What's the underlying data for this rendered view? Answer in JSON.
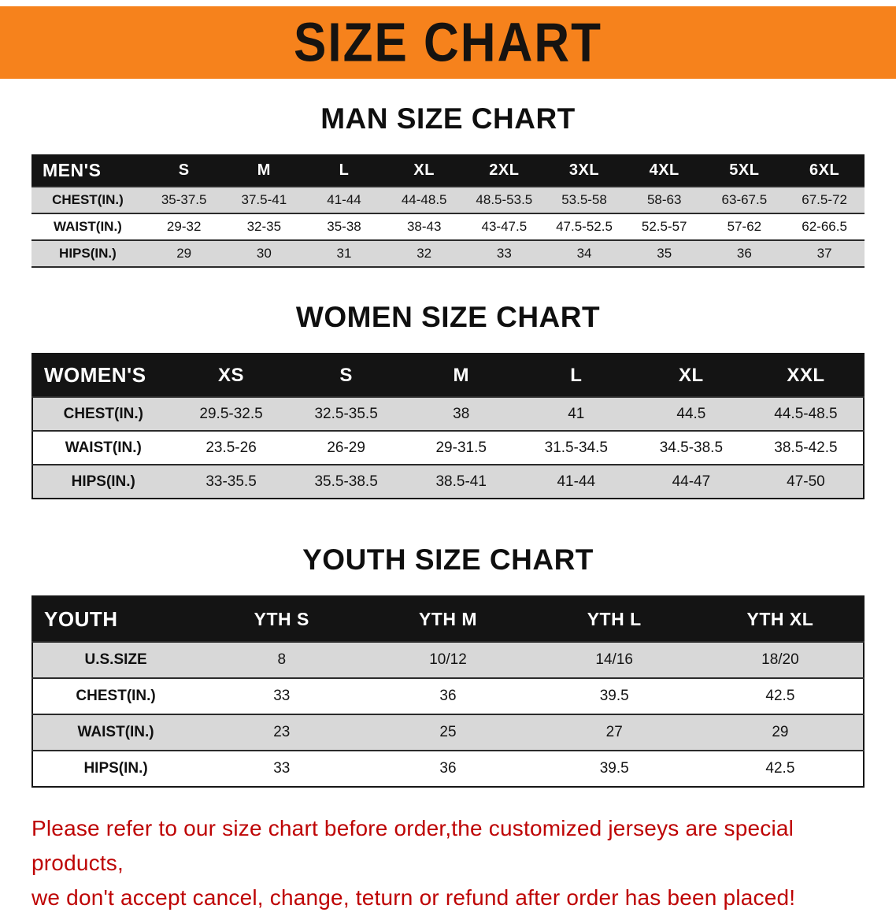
{
  "banner": {
    "title": "SIZE CHART",
    "bg_color": "#F6821C"
  },
  "sections": [
    {
      "title": "MAN SIZE CHART",
      "table": {
        "header": [
          "MEN'S",
          "S",
          "M",
          "L",
          "XL",
          "2XL",
          "3XL",
          "4XL",
          "5XL",
          "6XL"
        ],
        "rows": [
          [
            "CHEST(IN.)",
            "35-37.5",
            "37.5-41",
            "41-44",
            "44-48.5",
            "48.5-53.5",
            "53.5-58",
            "58-63",
            "63-67.5",
            "67.5-72"
          ],
          [
            "WAIST(IN.)",
            "29-32",
            "32-35",
            "35-38",
            "38-43",
            "43-47.5",
            "47.5-52.5",
            "52.5-57",
            "57-62",
            "62-66.5"
          ],
          [
            "HIPS(IN.)",
            "29",
            "30",
            "31",
            "32",
            "33",
            "34",
            "35",
            "36",
            "37"
          ]
        ]
      }
    },
    {
      "title": "WOMEN SIZE CHART",
      "table": {
        "header": [
          "WOMEN'S",
          "XS",
          "S",
          "M",
          "L",
          "XL",
          "XXL"
        ],
        "rows": [
          [
            "CHEST(IN.)",
            "29.5-32.5",
            "32.5-35.5",
            "38",
            "41",
            "44.5",
            "44.5-48.5"
          ],
          [
            "WAIST(IN.)",
            "23.5-26",
            "26-29",
            "29-31.5",
            "31.5-34.5",
            "34.5-38.5",
            "38.5-42.5"
          ],
          [
            "HIPS(IN.)",
            "33-35.5",
            "35.5-38.5",
            "38.5-41",
            "41-44",
            "44-47",
            "47-50"
          ]
        ]
      }
    },
    {
      "title": "YOUTH SIZE CHART",
      "table": {
        "header": [
          "YOUTH",
          "YTH S",
          "YTH M",
          "YTH L",
          "YTH XL"
        ],
        "rows": [
          [
            "U.S.SIZE",
            "8",
            "10/12",
            "14/16",
            "18/20"
          ],
          [
            "CHEST(IN.)",
            "33",
            "36",
            "39.5",
            "42.5"
          ],
          [
            "WAIST(IN.)",
            "23",
            "25",
            "27",
            "29"
          ],
          [
            "HIPS(IN.)",
            "33",
            "36",
            "39.5",
            "42.5"
          ]
        ]
      }
    }
  ],
  "footer": {
    "line1": "Please refer to our size chart before order,the customized jerseys are special products,",
    "line2": "we don't accept cancel, change, teturn or refund after order has been placed!",
    "text_color": "#BE0404"
  }
}
